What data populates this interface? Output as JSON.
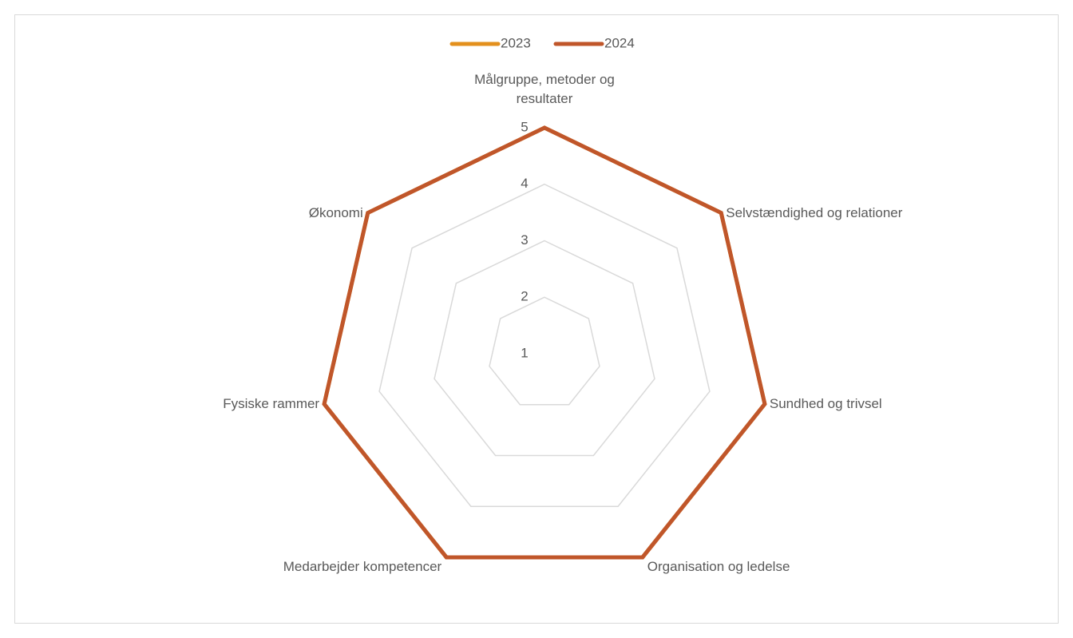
{
  "chart_data": {
    "type": "radar",
    "categories": [
      "Målgruppe, metoder og resultater",
      "Selvstændighed og relationer",
      "Sundhed og trivsel",
      "Organisation og ledelse",
      "Medarbejder kompetencer",
      "Fysiske rammer",
      "Økonomi"
    ],
    "series": [
      {
        "name": "2023",
        "color": "#e3901d",
        "values": [
          5,
          5,
          5,
          5,
          5,
          5,
          5
        ]
      },
      {
        "name": "2024",
        "color": "#c0562a",
        "values": [
          5,
          5,
          5,
          5,
          5,
          5,
          5
        ]
      }
    ],
    "ylim": [
      1,
      5
    ],
    "yticks": [
      1,
      2,
      3,
      4,
      5
    ],
    "grid": true,
    "legend": "top"
  }
}
